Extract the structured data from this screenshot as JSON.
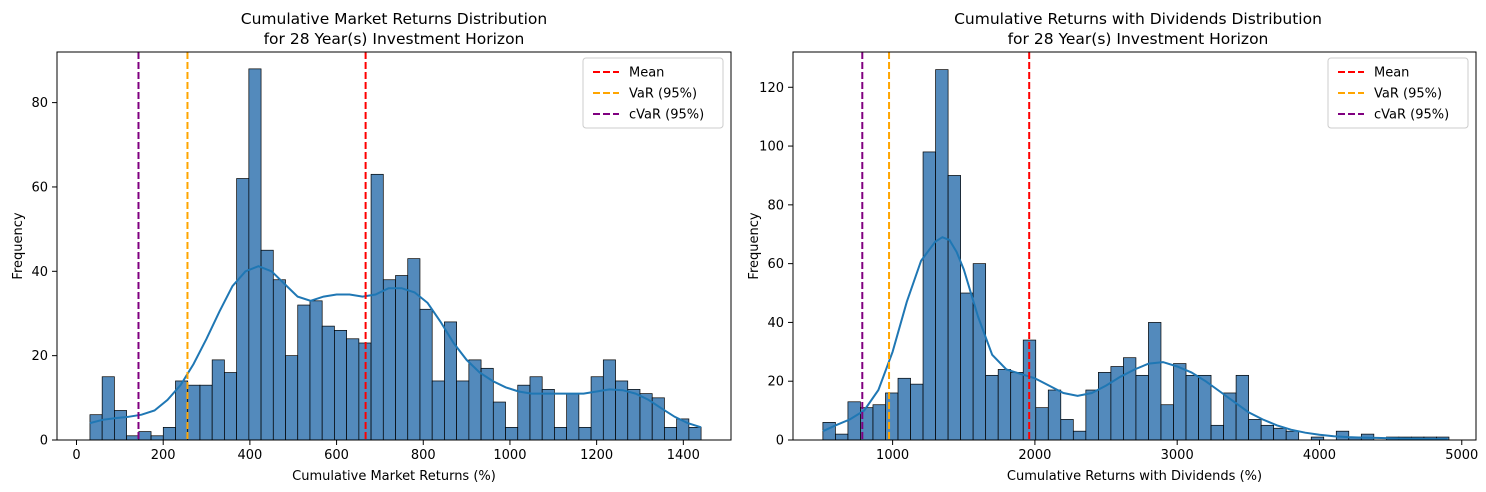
{
  "chart_data": [
    {
      "type": "histogram",
      "title": "Cumulative Market Returns Distribution\nfor 28 Year(s) Investment Horizon",
      "title_lines": [
        "Cumulative Market Returns Distribution",
        "for 28 Year(s) Investment Horizon"
      ],
      "xlabel": "Cumulative Market Returns (%)",
      "ylabel": "Frequency",
      "xlim": [
        -45,
        1510
      ],
      "ylim": [
        0,
        92
      ],
      "xticks": [
        0,
        200,
        400,
        600,
        800,
        1000,
        1200,
        1400
      ],
      "yticks": [
        0,
        20,
        40,
        60,
        80
      ],
      "bin_start": 31,
      "bin_width": 28.2,
      "counts": [
        6,
        15,
        7,
        1,
        2,
        1,
        3,
        14,
        13,
        13,
        19,
        16,
        62,
        88,
        45,
        38,
        20,
        32,
        33,
        27,
        26,
        24,
        23,
        63,
        38,
        39,
        43,
        31,
        14,
        28,
        14,
        19,
        17,
        9,
        3,
        13,
        15,
        12,
        3,
        11,
        3,
        15,
        19,
        14,
        12,
        11,
        10,
        3,
        5,
        3
      ],
      "kde": {
        "x": [
          31,
          60,
          90,
          120,
          150,
          180,
          210,
          240,
          270,
          300,
          330,
          360,
          390,
          420,
          450,
          480,
          510,
          540,
          570,
          600,
          630,
          660,
          690,
          720,
          750,
          780,
          810,
          840,
          870,
          900,
          930,
          960,
          990,
          1020,
          1050,
          1080,
          1110,
          1140,
          1170,
          1200,
          1230,
          1260,
          1290,
          1320,
          1350,
          1380,
          1410,
          1441
        ],
        "y": [
          4,
          4.8,
          5.2,
          5.5,
          6,
          7,
          9.5,
          13,
          18,
          24,
          30.5,
          36.5,
          40,
          41.2,
          40,
          37,
          34,
          33,
          34,
          34.5,
          34.5,
          34,
          34.5,
          36,
          36,
          35,
          32.5,
          28,
          23,
          19,
          16,
          14,
          12.5,
          11.5,
          11,
          11,
          11,
          11,
          11,
          11.5,
          12,
          11.8,
          11,
          9.5,
          7.5,
          5.5,
          4,
          3
        ]
      },
      "vlines": [
        {
          "name": "Mean",
          "x": 667,
          "color": "#ff0000"
        },
        {
          "name": "VaR (95%)",
          "x": 256,
          "color": "#ffa500"
        },
        {
          "name": "cVaR (95%)",
          "x": 143,
          "color": "#800080"
        }
      ],
      "legend": [
        "Mean",
        "VaR (95%)",
        "cVaR (95%)"
      ],
      "legend_position": "top-right"
    },
    {
      "type": "histogram",
      "title": "Cumulative Returns with Dividends Distribution\nfor 28 Year(s) Investment Horizon",
      "title_lines": [
        "Cumulative Returns with Dividends Distribution",
        "for 28 Year(s) Investment Horizon"
      ],
      "xlabel": "Cumulative Returns with Dividends (%)",
      "ylabel": "Frequency",
      "xlim": [
        300,
        5100
      ],
      "ylim": [
        0,
        132
      ],
      "xticks": [
        1000,
        2000,
        3000,
        4000,
        5000
      ],
      "yticks": [
        0,
        20,
        40,
        60,
        80,
        100,
        120
      ],
      "bin_start": 510,
      "bin_width": 88,
      "counts": [
        6,
        2,
        13,
        11,
        12,
        16,
        21,
        19,
        98,
        126,
        90,
        50,
        60,
        22,
        24,
        23,
        34,
        11,
        17,
        7,
        3,
        17,
        23,
        25,
        28,
        22,
        40,
        12,
        26,
        22,
        22,
        5,
        16,
        22,
        7,
        5,
        4,
        3,
        0,
        1,
        0,
        3,
        1,
        2,
        0,
        1,
        1,
        1,
        1,
        1
      ],
      "kde": {
        "x": [
          510,
          600,
          700,
          800,
          900,
          1000,
          1100,
          1200,
          1300,
          1350,
          1400,
          1450,
          1500,
          1600,
          1700,
          1800,
          1900,
          2000,
          2100,
          2200,
          2300,
          2400,
          2500,
          2600,
          2700,
          2800,
          2900,
          3000,
          3100,
          3200,
          3300,
          3400,
          3500,
          3600,
          3700,
          3800,
          3900,
          4000,
          4100,
          4200,
          4300,
          4400,
          4500,
          4600,
          4700,
          4800,
          4900
        ],
        "y": [
          3,
          5,
          7,
          10,
          17,
          30,
          47,
          61,
          67.5,
          69,
          68,
          64,
          58,
          42,
          29,
          24,
          22.5,
          21,
          18.5,
          16,
          15,
          16,
          18.5,
          21.5,
          24,
          26,
          26.5,
          25,
          23,
          20,
          16.5,
          13,
          9.5,
          7,
          5,
          3.5,
          2.5,
          1.8,
          1.3,
          1,
          0.8,
          0.7,
          0.6,
          0.5,
          0.4,
          0.3,
          0.3
        ]
      },
      "vlines": [
        {
          "name": "Mean",
          "x": 1960,
          "color": "#ff0000"
        },
        {
          "name": "VaR (95%)",
          "x": 975,
          "color": "#ffa500"
        },
        {
          "name": "cVaR (95%)",
          "x": 787,
          "color": "#800080"
        }
      ],
      "legend": [
        "Mean",
        "VaR (95%)",
        "cVaR (95%)"
      ],
      "legend_position": "top-right"
    }
  ]
}
